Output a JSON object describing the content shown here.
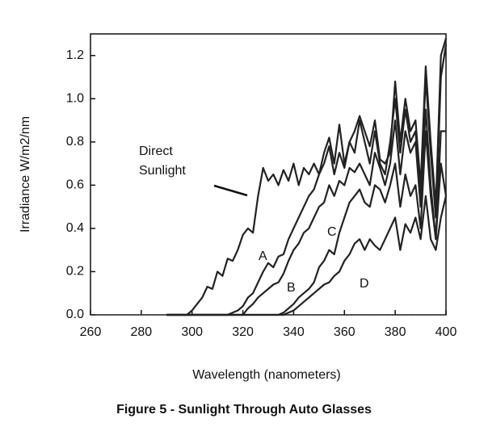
{
  "chart_data": {
    "type": "line",
    "title": "Figure 5 - Sunlight Through Auto Glasses",
    "x_label": "Wavelength (nanometers)",
    "y_label": "Irradiance W/m2/nm",
    "xlim": [
      260,
      400
    ],
    "xticks": [
      260,
      280,
      300,
      320,
      340,
      360,
      380,
      400
    ],
    "ylim": [
      0,
      1.3
    ],
    "yticks": [
      {
        "value": 0,
        "label": "0.0"
      },
      0.2,
      0.4,
      0.6,
      0.8,
      {
        "value": 1,
        "label": "1.0"
      },
      1.2
    ],
    "x": [
      290,
      292,
      294,
      296,
      298,
      300,
      302,
      304,
      306,
      308,
      310,
      312,
      314,
      316,
      318,
      320,
      322,
      324,
      326,
      328,
      330,
      332,
      334,
      336,
      338,
      340,
      342,
      344,
      346,
      348,
      350,
      352,
      354,
      356,
      358,
      360,
      362,
      364,
      366,
      368,
      370,
      372,
      374,
      376,
      378,
      380,
      382,
      384,
      386,
      388,
      390,
      392,
      394,
      396,
      398,
      400
    ],
    "series": [
      {
        "name": "Direct Sunlight",
        "color": "#222222",
        "values": [
          0,
          0,
          0,
          0,
          0,
          0.02,
          0.05,
          0.08,
          0.13,
          0.12,
          0.2,
          0.18,
          0.26,
          0.25,
          0.3,
          0.37,
          0.4,
          0.38,
          0.55,
          0.68,
          0.62,
          0.65,
          0.6,
          0.67,
          0.62,
          0.7,
          0.6,
          0.68,
          0.65,
          0.7,
          0.65,
          0.75,
          0.82,
          0.7,
          0.88,
          0.7,
          0.8,
          0.85,
          0.92,
          0.85,
          0.78,
          0.9,
          0.72,
          0.7,
          0.75,
          1.08,
          0.8,
          1.0,
          0.85,
          0.9,
          0.6,
          1.15,
          0.8,
          0.5,
          1.2,
          1.28
        ]
      },
      {
        "name": "A",
        "color": "#222222",
        "values": [
          0,
          0,
          0,
          0,
          0,
          0,
          0,
          0,
          0,
          0,
          0,
          0,
          0,
          0.01,
          0.02,
          0.04,
          0.08,
          0.1,
          0.15,
          0.2,
          0.24,
          0.22,
          0.27,
          0.28,
          0.35,
          0.4,
          0.45,
          0.5,
          0.55,
          0.58,
          0.65,
          0.7,
          0.78,
          0.65,
          0.75,
          0.68,
          0.8,
          0.75,
          0.9,
          0.8,
          0.7,
          0.85,
          0.7,
          0.65,
          0.8,
          1.0,
          0.75,
          0.95,
          0.8,
          0.85,
          0.55,
          1.1,
          0.75,
          0.45,
          1.1,
          1.25
        ]
      },
      {
        "name": "B",
        "color": "#222222",
        "values": [
          0,
          0,
          0,
          0,
          0,
          0,
          0,
          0,
          0,
          0,
          0,
          0,
          0,
          0,
          0,
          0,
          0.03,
          0.05,
          0.08,
          0.1,
          0.12,
          0.14,
          0.15,
          0.19,
          0.25,
          0.3,
          0.33,
          0.38,
          0.4,
          0.45,
          0.5,
          0.52,
          0.6,
          0.55,
          0.62,
          0.6,
          0.68,
          0.66,
          0.7,
          0.65,
          0.6,
          0.75,
          0.68,
          0.6,
          0.7,
          0.9,
          0.65,
          0.85,
          0.75,
          0.8,
          0.5,
          0.95,
          0.6,
          0.35,
          0.85,
          0.85
        ]
      },
      {
        "name": "C",
        "color": "#222222",
        "values": [
          0,
          0,
          0,
          0,
          0,
          0,
          0,
          0,
          0,
          0,
          0,
          0,
          0,
          0,
          0,
          0,
          0,
          0,
          0,
          0,
          0,
          0,
          0,
          0.01,
          0.03,
          0.05,
          0.08,
          0.1,
          0.12,
          0.15,
          0.22,
          0.25,
          0.3,
          0.28,
          0.38,
          0.45,
          0.52,
          0.55,
          0.58,
          0.52,
          0.5,
          0.6,
          0.58,
          0.52,
          0.6,
          0.7,
          0.5,
          0.65,
          0.55,
          0.6,
          0.4,
          0.85,
          0.55,
          0.35,
          0.7,
          0.55
        ]
      },
      {
        "name": "D",
        "color": "#222222",
        "values": [
          0,
          0,
          0,
          0,
          0,
          0,
          0,
          0,
          0,
          0,
          0,
          0,
          0,
          0,
          0,
          0,
          0,
          0,
          0,
          0,
          0,
          0,
          0,
          0,
          0.01,
          0.02,
          0.04,
          0.06,
          0.08,
          0.1,
          0.12,
          0.14,
          0.15,
          0.18,
          0.2,
          0.25,
          0.28,
          0.33,
          0.35,
          0.3,
          0.35,
          0.32,
          0.3,
          0.35,
          0.4,
          0.45,
          0.3,
          0.42,
          0.38,
          0.45,
          0.35,
          0.55,
          0.35,
          0.3,
          0.45,
          0.55
        ]
      }
    ]
  }
}
